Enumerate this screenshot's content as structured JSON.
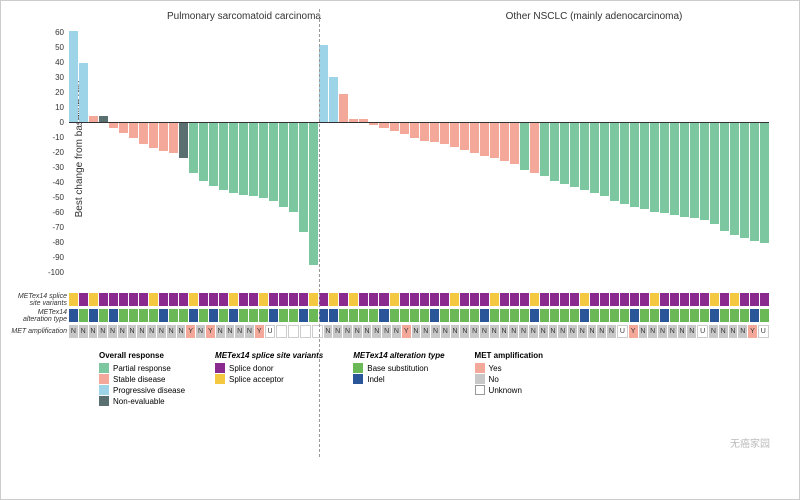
{
  "chart": {
    "type": "bar",
    "ylabel": "Best change from baseline (%)",
    "ylim": [
      -100,
      60
    ],
    "yticks": [
      60,
      50,
      40,
      30,
      20,
      10,
      0,
      -10,
      -20,
      -30,
      -40,
      -50,
      -60,
      -70,
      -80,
      -90,
      -100
    ],
    "group1_title": "Pulmonary sarcomatoid carcinoma",
    "group2_title": "Other NSCLC (mainly adenocarcinoma)",
    "divider_after_index": 24
  },
  "colors": {
    "partial_response": "#7cc7a0",
    "stable_disease": "#f4a89a",
    "progressive_disease": "#9dd4e8",
    "non_evaluable": "#5a7070",
    "splice_donor": "#8b2a8e",
    "splice_acceptor": "#f5c842",
    "base_substitution": "#6bb857",
    "indel": "#2a5599",
    "amp_yes": "#f4a89a",
    "amp_no": "#c8c8c8",
    "amp_unknown": "#ffffff",
    "bg": "#ffffff",
    "axis": "#333333"
  },
  "bars": [
    {
      "v": 59,
      "r": "progressive_disease",
      "s": "splice_acceptor",
      "a": "indel",
      "m": "N"
    },
    {
      "v": 38,
      "r": "progressive_disease",
      "s": "splice_donor",
      "a": "base_substitution",
      "m": "N"
    },
    {
      "v": 4,
      "r": "stable_disease",
      "s": "splice_acceptor",
      "a": "indel",
      "m": "N"
    },
    {
      "v": 4,
      "r": "non_evaluable",
      "s": "splice_donor",
      "a": "base_substitution",
      "m": "N"
    },
    {
      "v": -4,
      "r": "stable_disease",
      "s": "splice_donor",
      "a": "indel",
      "m": "N"
    },
    {
      "v": -7,
      "r": "stable_disease",
      "s": "splice_donor",
      "a": "base_substitution",
      "m": "N"
    },
    {
      "v": -10,
      "r": "stable_disease",
      "s": "splice_donor",
      "a": "base_substitution",
      "m": "N"
    },
    {
      "v": -14,
      "r": "stable_disease",
      "s": "splice_donor",
      "a": "base_substitution",
      "m": "N"
    },
    {
      "v": -17,
      "r": "stable_disease",
      "s": "splice_acceptor",
      "a": "base_substitution",
      "m": "N"
    },
    {
      "v": -19,
      "r": "stable_disease",
      "s": "splice_donor",
      "a": "indel",
      "m": "N"
    },
    {
      "v": -20,
      "r": "stable_disease",
      "s": "splice_donor",
      "a": "base_substitution",
      "m": "N"
    },
    {
      "v": -23,
      "r": "non_evaluable",
      "s": "splice_donor",
      "a": "base_substitution",
      "m": "N"
    },
    {
      "v": -33,
      "r": "partial_response",
      "s": "splice_acceptor",
      "a": "indel",
      "m": "Y"
    },
    {
      "v": -38,
      "r": "partial_response",
      "s": "splice_donor",
      "a": "base_substitution",
      "m": "N"
    },
    {
      "v": -41,
      "r": "partial_response",
      "s": "splice_donor",
      "a": "indel",
      "m": "Y"
    },
    {
      "v": -44,
      "r": "partial_response",
      "s": "splice_donor",
      "a": "base_substitution",
      "m": "N"
    },
    {
      "v": -46,
      "r": "partial_response",
      "s": "splice_acceptor",
      "a": "indel",
      "m": "N"
    },
    {
      "v": -47,
      "r": "partial_response",
      "s": "splice_donor",
      "a": "base_substitution",
      "m": "N"
    },
    {
      "v": -48,
      "r": "partial_response",
      "s": "splice_donor",
      "a": "base_substitution",
      "m": "N"
    },
    {
      "v": -49,
      "r": "partial_response",
      "s": "splice_acceptor",
      "a": "base_substitution",
      "m": "Y"
    },
    {
      "v": -51,
      "r": "partial_response",
      "s": "splice_donor",
      "a": "indel",
      "m": "U"
    },
    {
      "v": -55,
      "r": "partial_response",
      "s": "splice_donor",
      "a": "base_substitution",
      "m": ""
    },
    {
      "v": -58,
      "r": "partial_response",
      "s": "splice_donor",
      "a": "base_substitution",
      "m": ""
    },
    {
      "v": -71,
      "r": "partial_response",
      "s": "splice_donor",
      "a": "indel",
      "m": ""
    },
    {
      "v": -92,
      "r": "partial_response",
      "s": "splice_acceptor",
      "a": "base_substitution",
      "m": ""
    },
    {
      "v": 50,
      "r": "progressive_disease",
      "s": "splice_donor",
      "a": "indel",
      "m": "N"
    },
    {
      "v": 29,
      "r": "progressive_disease",
      "s": "splice_acceptor",
      "a": "indel",
      "m": "N"
    },
    {
      "v": 18,
      "r": "stable_disease",
      "s": "splice_donor",
      "a": "base_substitution",
      "m": "N"
    },
    {
      "v": 2,
      "r": "stable_disease",
      "s": "splice_acceptor",
      "a": "base_substitution",
      "m": "N"
    },
    {
      "v": 2,
      "r": "stable_disease",
      "s": "splice_donor",
      "a": "base_substitution",
      "m": "N"
    },
    {
      "v": -2,
      "r": "stable_disease",
      "s": "splice_donor",
      "a": "base_substitution",
      "m": "N"
    },
    {
      "v": -4,
      "r": "stable_disease",
      "s": "splice_donor",
      "a": "indel",
      "m": "N"
    },
    {
      "v": -6,
      "r": "stable_disease",
      "s": "splice_acceptor",
      "a": "base_substitution",
      "m": "N"
    },
    {
      "v": -8,
      "r": "stable_disease",
      "s": "splice_donor",
      "a": "base_substitution",
      "m": "Y"
    },
    {
      "v": -10,
      "r": "stable_disease",
      "s": "splice_donor",
      "a": "base_substitution",
      "m": "N"
    },
    {
      "v": -12,
      "r": "stable_disease",
      "s": "splice_donor",
      "a": "base_substitution",
      "m": "N"
    },
    {
      "v": -13,
      "r": "stable_disease",
      "s": "splice_donor",
      "a": "indel",
      "m": "N"
    },
    {
      "v": -14,
      "r": "stable_disease",
      "s": "splice_donor",
      "a": "base_substitution",
      "m": "N"
    },
    {
      "v": -16,
      "r": "stable_disease",
      "s": "splice_acceptor",
      "a": "base_substitution",
      "m": "N"
    },
    {
      "v": -18,
      "r": "stable_disease",
      "s": "splice_donor",
      "a": "base_substitution",
      "m": "N"
    },
    {
      "v": -20,
      "r": "stable_disease",
      "s": "splice_donor",
      "a": "base_substitution",
      "m": "N"
    },
    {
      "v": -22,
      "r": "stable_disease",
      "s": "splice_donor",
      "a": "indel",
      "m": "N"
    },
    {
      "v": -23,
      "r": "stable_disease",
      "s": "splice_acceptor",
      "a": "base_substitution",
      "m": "N"
    },
    {
      "v": -25,
      "r": "stable_disease",
      "s": "splice_donor",
      "a": "base_substitution",
      "m": "N"
    },
    {
      "v": -27,
      "r": "stable_disease",
      "s": "splice_donor",
      "a": "base_substitution",
      "m": "N"
    },
    {
      "v": -31,
      "r": "partial_response",
      "s": "splice_donor",
      "a": "base_substitution",
      "m": "N"
    },
    {
      "v": -33,
      "r": "stable_disease",
      "s": "splice_acceptor",
      "a": "indel",
      "m": "N"
    },
    {
      "v": -35,
      "r": "partial_response",
      "s": "splice_donor",
      "a": "base_substitution",
      "m": "N"
    },
    {
      "v": -38,
      "r": "partial_response",
      "s": "splice_donor",
      "a": "base_substitution",
      "m": "N"
    },
    {
      "v": -40,
      "r": "partial_response",
      "s": "splice_donor",
      "a": "base_substitution",
      "m": "N"
    },
    {
      "v": -42,
      "r": "partial_response",
      "s": "splice_donor",
      "a": "base_substitution",
      "m": "N"
    },
    {
      "v": -44,
      "r": "partial_response",
      "s": "splice_acceptor",
      "a": "indel",
      "m": "N"
    },
    {
      "v": -46,
      "r": "partial_response",
      "s": "splice_donor",
      "a": "base_substitution",
      "m": "N"
    },
    {
      "v": -48,
      "r": "partial_response",
      "s": "splice_donor",
      "a": "base_substitution",
      "m": "N"
    },
    {
      "v": -51,
      "r": "partial_response",
      "s": "splice_donor",
      "a": "base_substitution",
      "m": "N"
    },
    {
      "v": -53,
      "r": "partial_response",
      "s": "splice_donor",
      "a": "base_substitution",
      "m": "U"
    },
    {
      "v": -55,
      "r": "partial_response",
      "s": "splice_donor",
      "a": "indel",
      "m": "Y"
    },
    {
      "v": -56,
      "r": "partial_response",
      "s": "splice_donor",
      "a": "base_substitution",
      "m": "N"
    },
    {
      "v": -58,
      "r": "partial_response",
      "s": "splice_acceptor",
      "a": "base_substitution",
      "m": "N"
    },
    {
      "v": -59,
      "r": "partial_response",
      "s": "splice_donor",
      "a": "indel",
      "m": "N"
    },
    {
      "v": -60,
      "r": "partial_response",
      "s": "splice_donor",
      "a": "base_substitution",
      "m": "N"
    },
    {
      "v": -61,
      "r": "partial_response",
      "s": "splice_donor",
      "a": "base_substitution",
      "m": "N"
    },
    {
      "v": -62,
      "r": "partial_response",
      "s": "splice_donor",
      "a": "base_substitution",
      "m": "N"
    },
    {
      "v": -63,
      "r": "partial_response",
      "s": "splice_donor",
      "a": "base_substitution",
      "m": "U"
    },
    {
      "v": -66,
      "r": "partial_response",
      "s": "splice_acceptor",
      "a": "indel",
      "m": "N"
    },
    {
      "v": -70,
      "r": "partial_response",
      "s": "splice_donor",
      "a": "base_substitution",
      "m": "N"
    },
    {
      "v": -73,
      "r": "partial_response",
      "s": "splice_acceptor",
      "a": "base_substitution",
      "m": "N"
    },
    {
      "v": -75,
      "r": "partial_response",
      "s": "splice_donor",
      "a": "base_substitution",
      "m": "N"
    },
    {
      "v": -77,
      "r": "partial_response",
      "s": "splice_donor",
      "a": "indel",
      "m": "Y"
    },
    {
      "v": -78,
      "r": "partial_response",
      "s": "splice_donor",
      "a": "base_substitution",
      "m": "U"
    }
  ],
  "annotations": [
    {
      "key": "s",
      "label": "METex14 splice site variants",
      "color_map": {
        "splice_donor": "splice_donor",
        "splice_acceptor": "splice_acceptor"
      }
    },
    {
      "key": "a",
      "label": "METex14 alteration type",
      "color_map": {
        "base_substitution": "base_substitution",
        "indel": "indel"
      }
    },
    {
      "key": "m",
      "label": "MET amplification",
      "color_map": {
        "Y": "amp_yes",
        "N": "amp_no",
        "U": "amp_unknown",
        "": "amp_unknown"
      },
      "show_text": true
    }
  ],
  "legend": {
    "cols": [
      {
        "title": "Overall response",
        "items": [
          {
            "c": "partial_response",
            "l": "Partial response"
          },
          {
            "c": "stable_disease",
            "l": "Stable disease"
          },
          {
            "c": "progressive_disease",
            "l": "Progressive disease"
          },
          {
            "c": "non_evaluable",
            "l": "Non-evaluable"
          }
        ]
      },
      {
        "title": "METex14 splice site variants",
        "italic": true,
        "items": [
          {
            "c": "splice_donor",
            "l": "Splice donor"
          },
          {
            "c": "splice_acceptor",
            "l": "Splice acceptor"
          }
        ]
      },
      {
        "title": "METex14 alteration type",
        "italic": true,
        "items": [
          {
            "c": "base_substitution",
            "l": "Base substitution"
          },
          {
            "c": "indel",
            "l": "Indel"
          }
        ]
      },
      {
        "title": "MET amplification",
        "items": [
          {
            "c": "amp_yes",
            "l": "Yes"
          },
          {
            "c": "amp_no",
            "l": "No"
          },
          {
            "c": "amp_unknown",
            "l": "Unknown",
            "outline": true
          }
        ]
      }
    ]
  },
  "watermark": "无癌家园"
}
